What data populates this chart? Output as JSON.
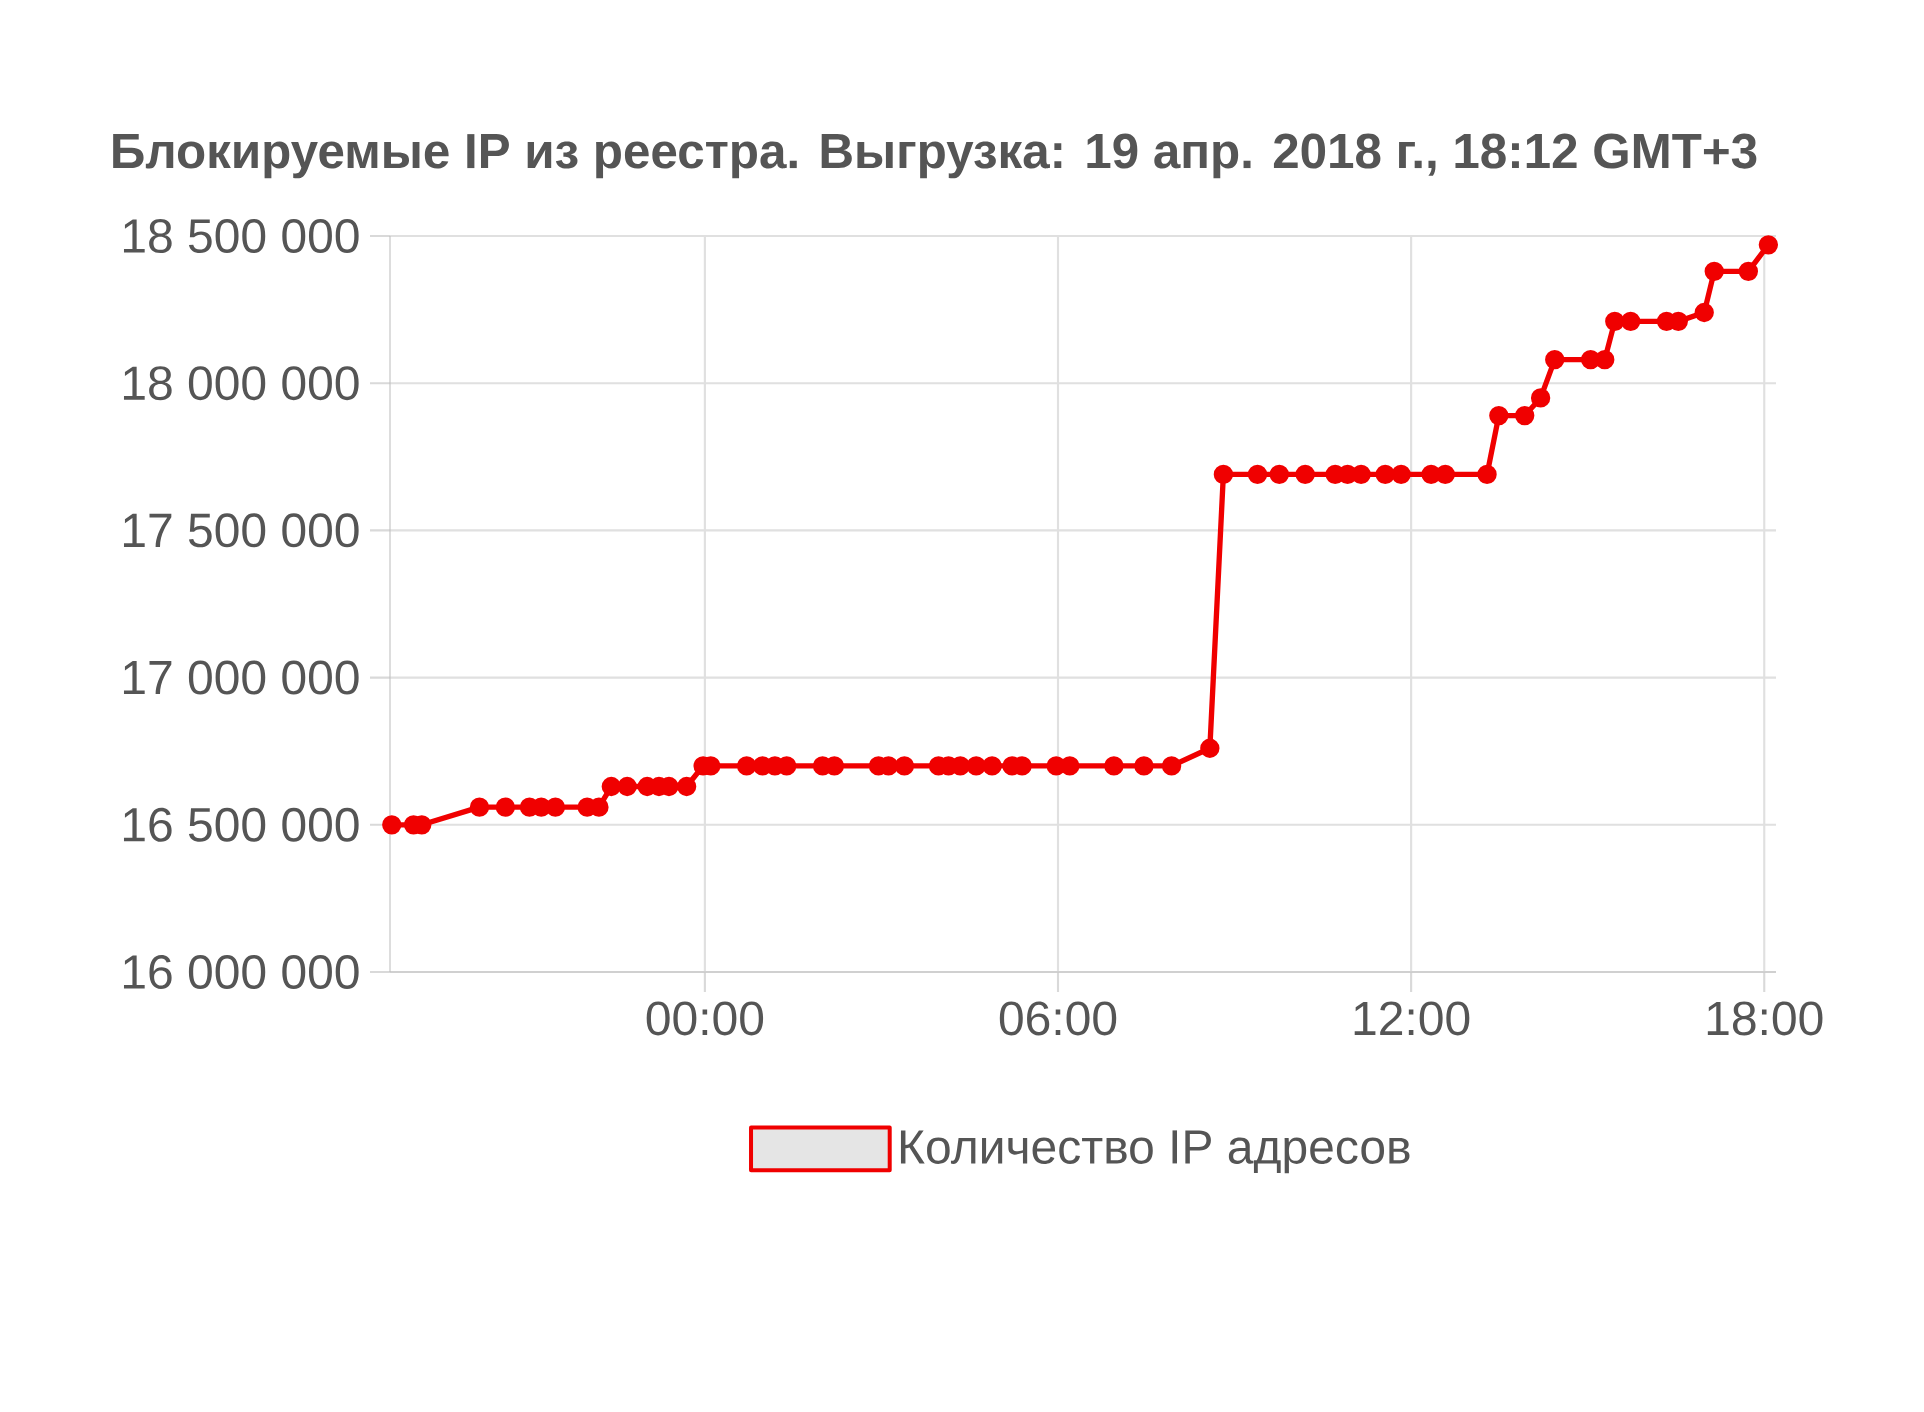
{
  "chart_data": {
    "type": "line",
    "title": "Блокируемые IP из реестра. Выгрузка: 19 апр. 2018 г., 18:12 GMT+3",
    "x": [
      -5.32,
      -4.95,
      -4.81,
      -3.83,
      -3.39,
      -2.98,
      -2.78,
      -2.54,
      -2.0,
      -1.8,
      -1.59,
      -1.32,
      -0.98,
      -0.78,
      -0.61,
      -0.31,
      -0.03,
      0.1,
      0.71,
      0.98,
      1.19,
      1.39,
      2.0,
      2.2,
      2.95,
      3.12,
      3.39,
      3.97,
      4.14,
      4.34,
      4.61,
      4.88,
      5.22,
      5.39,
      5.97,
      6.2,
      6.95,
      7.46,
      7.93,
      8.58,
      8.81,
      9.39,
      9.76,
      10.2,
      10.71,
      10.92,
      11.15,
      11.56,
      11.83,
      12.34,
      12.58,
      13.29,
      13.49,
      13.93,
      14.2,
      14.44,
      15.05,
      15.29,
      15.46,
      15.73,
      16.34,
      16.54,
      16.98,
      17.15,
      17.73,
      18.07
    ],
    "series": [
      {
        "name": "Количество IP адресов",
        "color": "#f00000",
        "values": [
          16500000,
          16500000,
          16500000,
          16560000,
          16560000,
          16560000,
          16560000,
          16560000,
          16560000,
          16560000,
          16630000,
          16630000,
          16630000,
          16630000,
          16630000,
          16630000,
          16700000,
          16700000,
          16700000,
          16700000,
          16700000,
          16700000,
          16700000,
          16700000,
          16700000,
          16700000,
          16700000,
          16700000,
          16700000,
          16700000,
          16700000,
          16700000,
          16700000,
          16700000,
          16700000,
          16700000,
          16700000,
          16700000,
          16700000,
          16760000,
          17690000,
          17690000,
          17690000,
          17690000,
          17690000,
          17690000,
          17690000,
          17690000,
          17690000,
          17690000,
          17690000,
          17690000,
          17890000,
          17890000,
          17950000,
          18080000,
          18080000,
          18080000,
          18210000,
          18210000,
          18210000,
          18210000,
          18240000,
          18380000,
          18380000,
          18470000
        ]
      }
    ],
    "xlim": [
      -5.35,
      18.2
    ],
    "ylim": [
      16000000,
      18500000
    ],
    "xticks": [
      {
        "value": 0,
        "label": "00:00"
      },
      {
        "value": 6,
        "label": "06:00"
      },
      {
        "value": 12,
        "label": "12:00"
      },
      {
        "value": 18,
        "label": "18:00"
      }
    ],
    "yticks": [
      {
        "value": 16000000,
        "label": "16 000 000"
      },
      {
        "value": 16500000,
        "label": "16 500 000"
      },
      {
        "value": 17000000,
        "label": "17 000 000"
      },
      {
        "value": 17500000,
        "label": "17 500 000"
      },
      {
        "value": 18000000,
        "label": "18 000 000"
      },
      {
        "value": 18500000,
        "label": "18 500 000"
      }
    ],
    "grid": true,
    "legend": "bottom",
    "marker": "circle",
    "line_style": "solid"
  }
}
